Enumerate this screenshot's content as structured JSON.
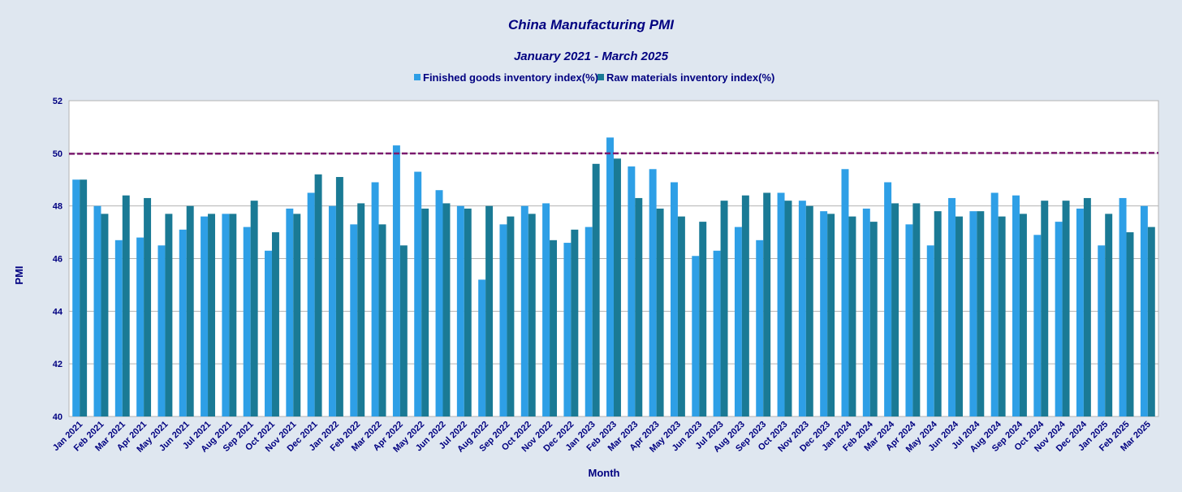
{
  "chart_data": {
    "type": "bar",
    "title": "China Manufacturing PMI",
    "subtitle": "January 2021 - March 2025",
    "xlabel": "Month",
    "ylabel": "PMI",
    "ylim": [
      40,
      52
    ],
    "yticks": [
      40,
      42,
      44,
      46,
      48,
      50,
      52
    ],
    "grid": true,
    "legend_position": "top-center",
    "reference_line": {
      "value": 50,
      "color": "#7a1a6e",
      "style": "dashed"
    },
    "categories": [
      "Jan 2021",
      "Feb 2021",
      "Mar 2021",
      "Apr 2021",
      "May 2021",
      "Jun 2021",
      "Jul 2021",
      "Aug 2021",
      "Sep 2021",
      "Oct 2021",
      "Nov 2021",
      "Dec 2021",
      "Jan 2022",
      "Feb 2022",
      "Mar 2022",
      "Apr 2022",
      "May 2022",
      "Jun 2022",
      "Jul 2022",
      "Aug 2022",
      "Sep 2022",
      "Oct 2022",
      "Nov 2022",
      "Dec 2022",
      "Jan 2023",
      "Feb 2023",
      "Mar 2023",
      "Apr 2023",
      "May 2023",
      "Jun 2023",
      "Jul 2023",
      "Aug 2023",
      "Sep 2023",
      "Oct 2023",
      "Nov 2023",
      "Dec 2023",
      "Jan 2024",
      "Feb 2024",
      "Mar 2024",
      "Apr 2024",
      "May 2024",
      "Jun 2024",
      "Jul 2024",
      "Aug 2024",
      "Sep 2024",
      "Oct 2024",
      "Nov 2024",
      "Dec 2024",
      "Jan 2025",
      "Feb 2025",
      "Mar 2025"
    ],
    "series": [
      {
        "name": "Finished goods inventory index(%)",
        "color": "#2e9fe6",
        "values": [
          49.0,
          48.0,
          46.7,
          46.8,
          46.5,
          47.1,
          47.6,
          47.7,
          47.2,
          46.3,
          47.9,
          48.5,
          48.0,
          47.3,
          48.9,
          50.3,
          49.3,
          48.6,
          48.0,
          45.2,
          47.3,
          48.0,
          48.1,
          46.6,
          47.2,
          50.6,
          49.5,
          49.4,
          48.9,
          46.1,
          46.3,
          47.2,
          46.7,
          48.5,
          48.2,
          47.8,
          49.4,
          47.9,
          48.9,
          47.3,
          46.5,
          48.3,
          47.8,
          48.5,
          48.4,
          46.9,
          47.4,
          47.9,
          46.5,
          48.3,
          48.0
        ]
      },
      {
        "name": "Raw materials inventory index(%)",
        "color": "#1a7a95",
        "values": [
          49.0,
          47.7,
          48.4,
          48.3,
          47.7,
          48.0,
          47.7,
          47.7,
          48.2,
          47.0,
          47.7,
          49.2,
          49.1,
          48.1,
          47.3,
          46.5,
          47.9,
          48.1,
          47.9,
          48.0,
          47.6,
          47.7,
          46.7,
          47.1,
          49.6,
          49.8,
          48.3,
          47.9,
          47.6,
          47.4,
          48.2,
          48.4,
          48.5,
          48.2,
          48.0,
          47.7,
          47.6,
          47.4,
          48.1,
          48.1,
          47.8,
          47.6,
          47.8,
          47.6,
          47.7,
          48.2,
          48.2,
          48.3,
          47.7,
          47.0,
          47.2
        ]
      }
    ]
  }
}
